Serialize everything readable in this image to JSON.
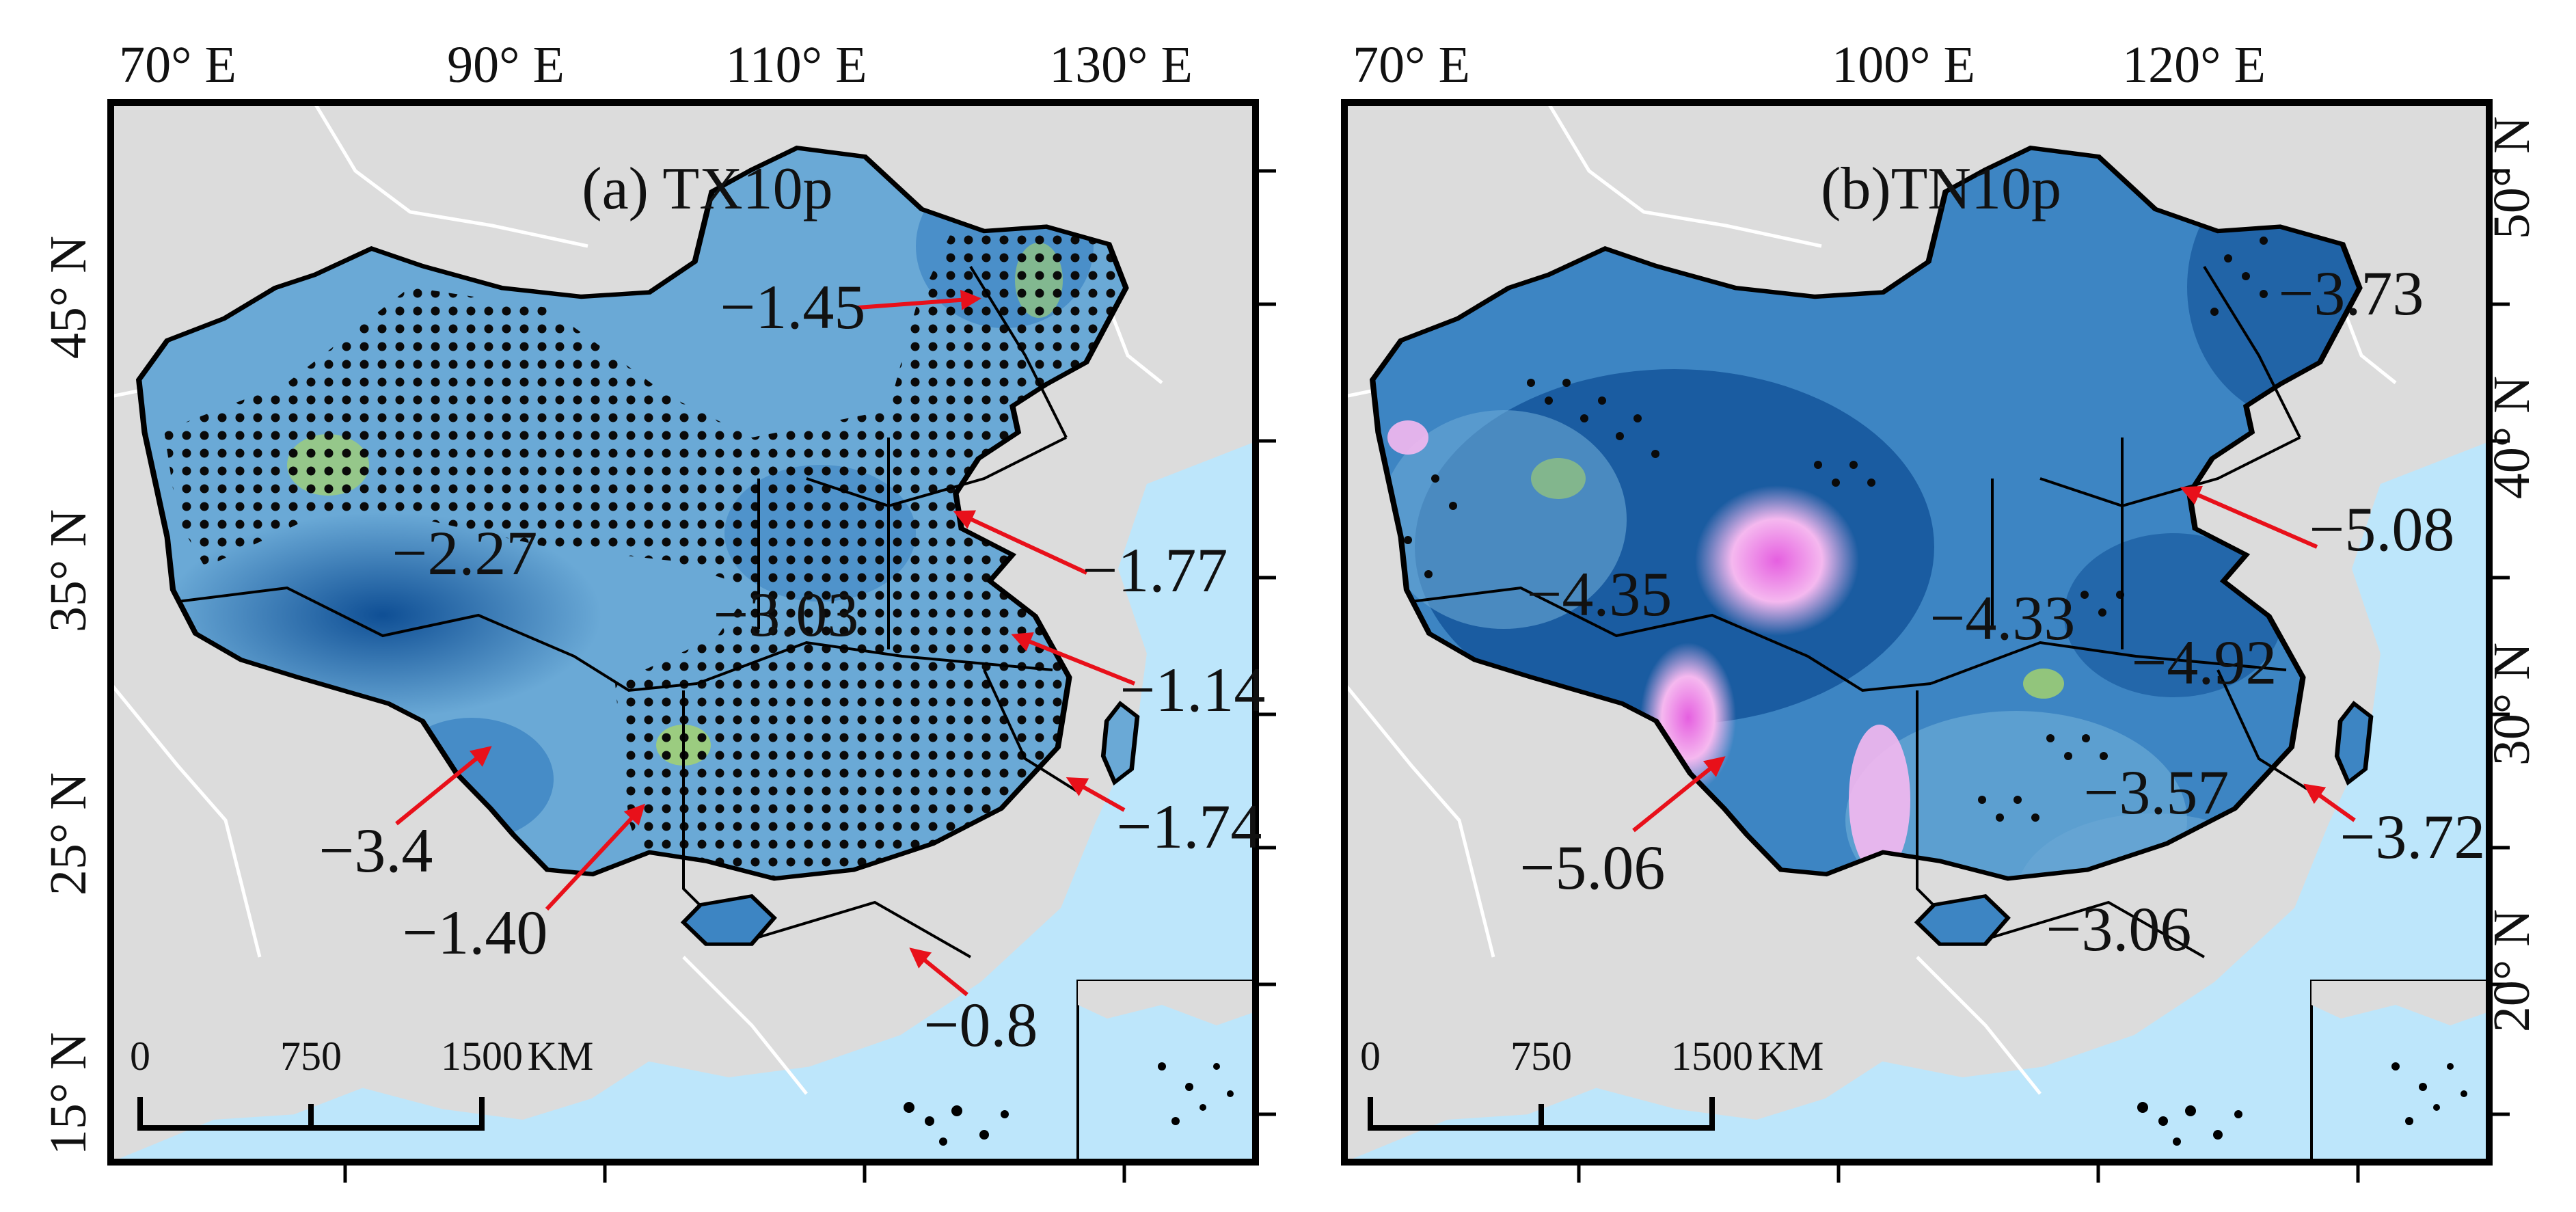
{
  "panels": [
    {
      "id": "a",
      "title": "(a) TX10p",
      "top_labels": [
        "70° E",
        "90° E",
        "110° E",
        "130° E"
      ],
      "side_labels": [
        "45° N",
        "35° N",
        "25° N",
        "15° N"
      ],
      "side": "left",
      "values": [
        "−1.45",
        "−2.27",
        "−3.03",
        "−1.77",
        "−1.14",
        "−1.74",
        "−3.4",
        "−1.40",
        "−0.8"
      ],
      "scale": [
        "0",
        "750",
        "1500",
        "KM"
      ],
      "stippled": true
    },
    {
      "id": "b",
      "title": "(b)TN10p",
      "top_labels": [
        "70° E",
        "100° E",
        "120° E"
      ],
      "side_labels": [
        "50° N",
        "40° N",
        "30° N",
        "20° N"
      ],
      "side": "right",
      "values": [
        "−3.73",
        "−5.08",
        "−4.35",
        "−4.33",
        "−4.92",
        "−3.57",
        "−3.72",
        "−5.06",
        "−3.06"
      ],
      "scale": [
        "0",
        "750",
        "1500",
        "KM"
      ],
      "stippled": false
    }
  ],
  "colors": {
    "land_background": "#dcdcdc",
    "sea": "#bde6fb",
    "china_light": "#6aa9d6",
    "china_mid": "#3d85c3",
    "china_dark": "#0f4f95",
    "positive_pink": "#f5b8ef",
    "positive_magenta": "#e55fe0",
    "weak_green": "#a8d46a",
    "arrow": "#e8101a",
    "stipple": "#0a0a0a",
    "frame": "#000000"
  }
}
